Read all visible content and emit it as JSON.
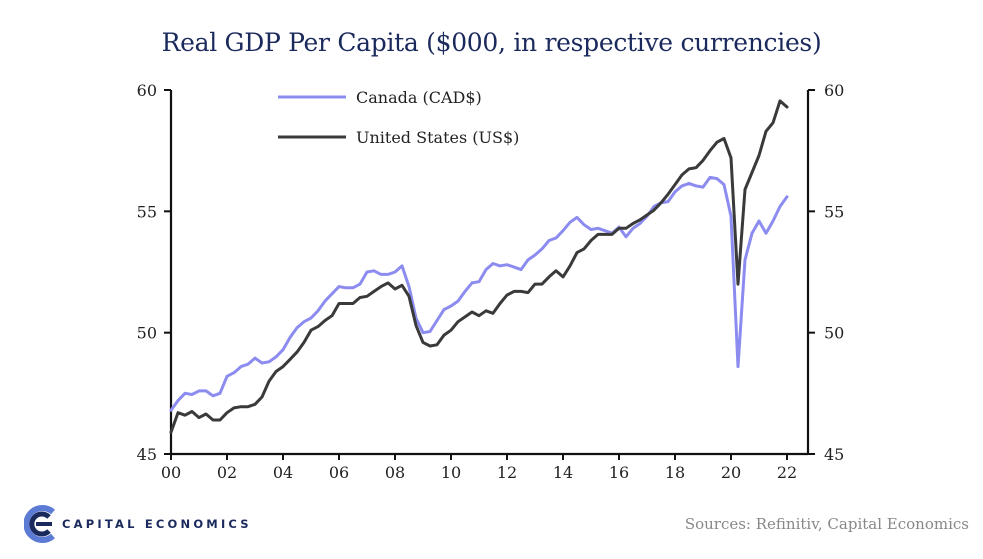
{
  "chart_data": {
    "type": "line",
    "title": "Real GDP Per Capita ($000, in respective currencies)",
    "xlabel": "",
    "ylabel": "",
    "x_range": [
      2000,
      2022.75
    ],
    "ylim": [
      45,
      60
    ],
    "y_ticks": [
      45,
      50,
      55,
      60
    ],
    "x_tick_values": [
      2000,
      2002,
      2004,
      2006,
      2008,
      2010,
      2012,
      2014,
      2016,
      2018,
      2020,
      2022
    ],
    "x_tick_labels": [
      "00",
      "02",
      "04",
      "06",
      "08",
      "10",
      "12",
      "14",
      "16",
      "18",
      "20",
      "22"
    ],
    "grid": false,
    "legend_position": "top-left",
    "x": [
      2000.0,
      2000.25,
      2000.5,
      2000.75,
      2001.0,
      2001.25,
      2001.5,
      2001.75,
      2002.0,
      2002.25,
      2002.5,
      2002.75,
      2003.0,
      2003.25,
      2003.5,
      2003.75,
      2004.0,
      2004.25,
      2004.5,
      2004.75,
      2005.0,
      2005.25,
      2005.5,
      2005.75,
      2006.0,
      2006.25,
      2006.5,
      2006.75,
      2007.0,
      2007.25,
      2007.5,
      2007.75,
      2008.0,
      2008.25,
      2008.5,
      2008.75,
      2009.0,
      2009.25,
      2009.5,
      2009.75,
      2010.0,
      2010.25,
      2010.5,
      2010.75,
      2011.0,
      2011.25,
      2011.5,
      2011.75,
      2012.0,
      2012.25,
      2012.5,
      2012.75,
      2013.0,
      2013.25,
      2013.5,
      2013.75,
      2014.0,
      2014.25,
      2014.5,
      2014.75,
      2015.0,
      2015.25,
      2015.5,
      2015.75,
      2016.0,
      2016.25,
      2016.5,
      2016.75,
      2017.0,
      2017.25,
      2017.5,
      2017.75,
      2018.0,
      2018.25,
      2018.5,
      2018.75,
      2019.0,
      2019.25,
      2019.5,
      2019.75,
      2020.0,
      2020.25,
      2020.5,
      2020.75,
      2021.0,
      2021.25,
      2021.5,
      2021.75,
      2022.0
    ],
    "series": [
      {
        "name": "Canada (CAD$)",
        "color": "#8c8cf0",
        "values": [
          46.8,
          47.2,
          47.5,
          47.45,
          47.6,
          47.6,
          47.4,
          47.5,
          48.2,
          48.35,
          48.6,
          48.7,
          48.95,
          48.75,
          48.8,
          49.0,
          49.3,
          49.8,
          50.2,
          50.45,
          50.6,
          50.9,
          51.3,
          51.6,
          51.9,
          51.85,
          51.85,
          52.0,
          52.5,
          52.55,
          52.4,
          52.4,
          52.5,
          52.75,
          51.9,
          50.6,
          50.0,
          50.05,
          50.5,
          50.95,
          51.1,
          51.3,
          51.7,
          52.05,
          52.1,
          52.6,
          52.85,
          52.75,
          52.8,
          52.7,
          52.6,
          53.0,
          53.2,
          53.45,
          53.8,
          53.9,
          54.2,
          54.55,
          54.75,
          54.45,
          54.25,
          54.3,
          54.2,
          54.1,
          54.35,
          53.95,
          54.3,
          54.5,
          54.8,
          55.2,
          55.35,
          55.4,
          55.8,
          56.05,
          56.15,
          56.05,
          56.0,
          56.4,
          56.35,
          56.1,
          54.8,
          48.6,
          53.0,
          54.1,
          54.6,
          54.1,
          54.6,
          55.2,
          55.6
        ]
      },
      {
        "name": "United States (US$)",
        "color": "#3a3a3a",
        "values": [
          45.9,
          46.7,
          46.6,
          46.75,
          46.5,
          46.65,
          46.4,
          46.4,
          46.7,
          46.9,
          46.95,
          46.95,
          47.05,
          47.35,
          48.0,
          48.4,
          48.6,
          48.9,
          49.2,
          49.6,
          50.1,
          50.25,
          50.5,
          50.7,
          51.2,
          51.2,
          51.2,
          51.45,
          51.5,
          51.7,
          51.9,
          52.05,
          51.8,
          51.95,
          51.5,
          50.3,
          49.6,
          49.45,
          49.5,
          49.9,
          50.1,
          50.45,
          50.65,
          50.85,
          50.7,
          50.9,
          50.8,
          51.2,
          51.55,
          51.7,
          51.7,
          51.65,
          52.0,
          52.0,
          52.3,
          52.55,
          52.3,
          52.75,
          53.3,
          53.45,
          53.8,
          54.05,
          54.05,
          54.05,
          54.3,
          54.3,
          54.5,
          54.65,
          54.85,
          55.05,
          55.35,
          55.7,
          56.1,
          56.5,
          56.75,
          56.8,
          57.1,
          57.5,
          57.85,
          58.0,
          57.2,
          52.0,
          55.9,
          56.6,
          57.3,
          58.3,
          58.65,
          59.55,
          59.3
        ]
      }
    ]
  },
  "footer": {
    "logo_text": "CAPITAL ECONOMICS",
    "source": "Sources: Refinitiv, Capital Economics",
    "brand_color": "#1b2a5c"
  }
}
